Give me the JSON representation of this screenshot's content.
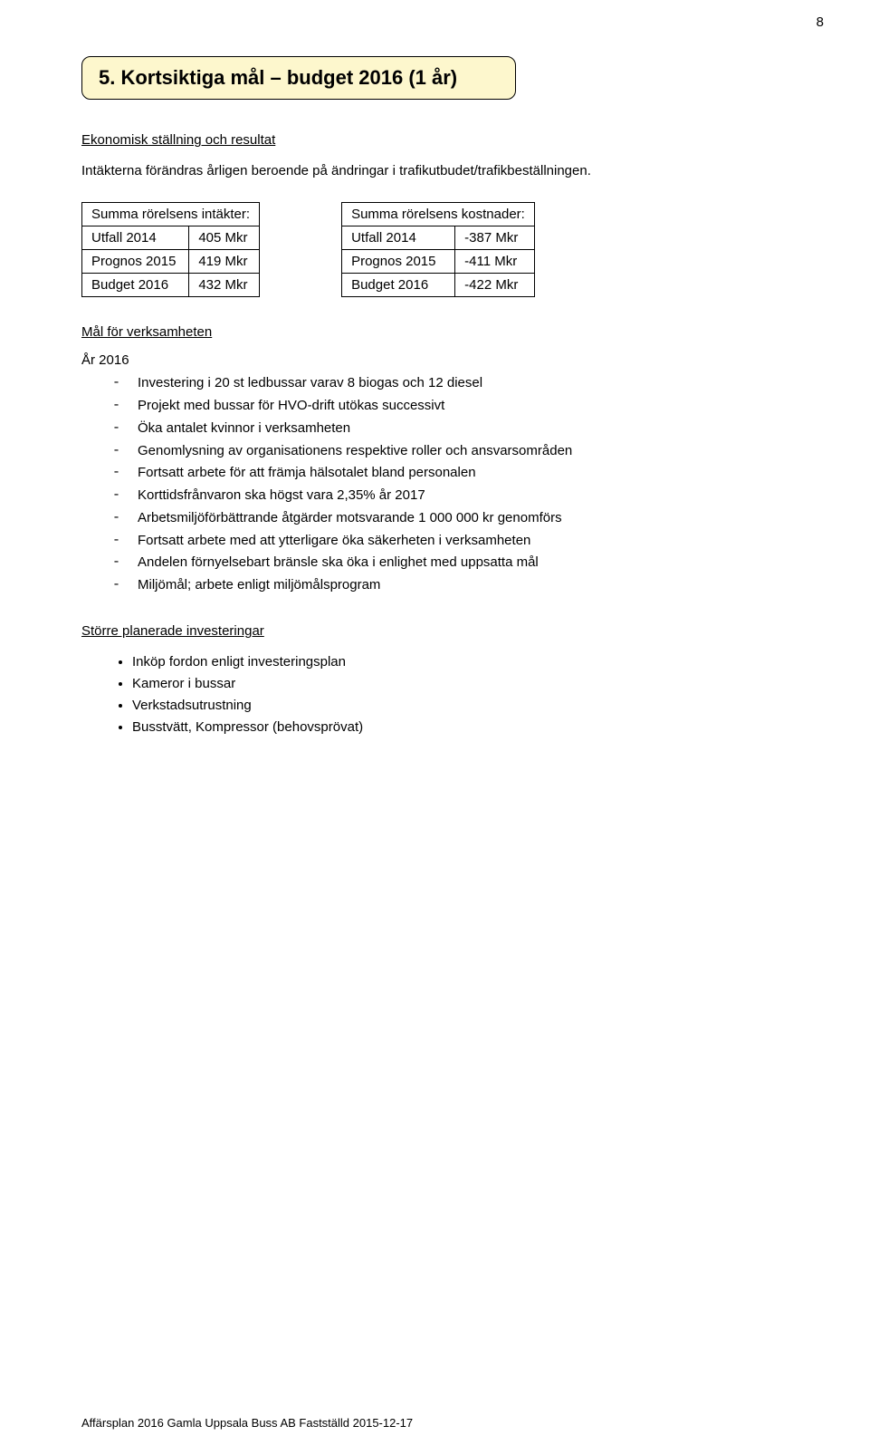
{
  "page_number": "8",
  "title_box": {
    "bg_color": "#fdf7cd",
    "border_color": "#000000",
    "text": "5. Kortsiktiga mål – budget 2016 (1 år)"
  },
  "section1": {
    "heading": "Ekonomisk ställning och resultat",
    "body": "Intäkterna förändras årligen beroende på ändringar i trafikutbudet/trafikbeställningen."
  },
  "tables": {
    "left": {
      "header": "Summa rörelsens intäkter:",
      "rows": [
        [
          "Utfall 2014",
          "405 Mkr"
        ],
        [
          "Prognos 2015",
          "419 Mkr"
        ],
        [
          "Budget 2016",
          "432 Mkr"
        ]
      ]
    },
    "right": {
      "header": "Summa rörelsens kostnader:",
      "rows": [
        [
          "Utfall 2014",
          "-387 Mkr"
        ],
        [
          "Prognos 2015",
          "-411 Mkr"
        ],
        [
          "Budget 2016",
          "-422 Mkr"
        ]
      ]
    }
  },
  "goals": {
    "heading": "Mål för verksamheten",
    "year_label": "År 2016",
    "items": [
      "Investering i 20 st ledbussar varav 8 biogas och 12 diesel",
      "Projekt med bussar för HVO-drift utökas successivt",
      "Öka antalet kvinnor i verksamheten",
      "Genomlysning av organisationens respektive roller och ansvarsområden",
      "Fortsatt arbete för att främja hälsotalet bland personalen",
      "Korttidsfrånvaron ska högst vara 2,35% år 2017",
      "Arbetsmiljöförbättrande åtgärder motsvarande 1 000 000 kr genomförs",
      "Fortsatt arbete med att ytterligare öka säkerheten i verksamheten",
      "Andelen förnyelsebart bränsle ska öka i enlighet med uppsatta mål",
      "Miljömål; arbete enligt miljömålsprogram"
    ]
  },
  "investments": {
    "heading": "Större planerade investeringar",
    "items": [
      "Inköp fordon enligt investeringsplan",
      "Kameror i bussar",
      "Verkstadsutrustning",
      "Busstvätt, Kompressor (behovsprövat)"
    ]
  },
  "footer": "Affärsplan 2016 Gamla Uppsala Buss AB Fastställd 2015-12-17"
}
